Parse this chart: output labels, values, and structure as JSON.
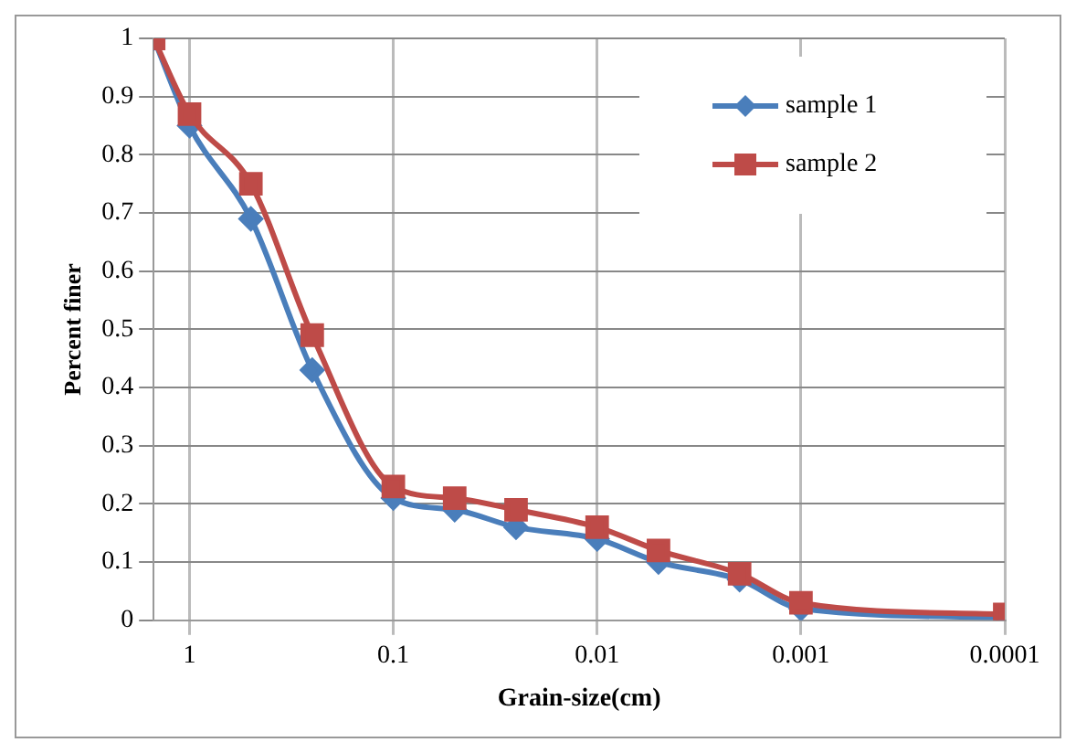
{
  "chart_data": {
    "type": "line",
    "xlabel": "Grain-size(cm)",
    "ylabel": "Percent finer",
    "log": "x",
    "xlim": [
      1.5,
      0.0001
    ],
    "xticks": [
      1,
      0.1,
      0.01,
      0.001,
      0.0001
    ],
    "ylim": [
      0,
      1
    ],
    "yticks": [
      0,
      0.1,
      0.2,
      0.3,
      0.4,
      0.5,
      0.6,
      0.7,
      0.8,
      0.9,
      1
    ],
    "grid": true,
    "legend": "top right",
    "series": [
      {
        "name": "sample 1",
        "color": "#4a7ebb",
        "marker": "diamond",
        "x": [
          1.5,
          1,
          0.5,
          0.25,
          0.1,
          0.05,
          0.025,
          0.01,
          0.005,
          0.002,
          0.001,
          0.0001
        ],
        "values": [
          1,
          0.85,
          0.69,
          0.43,
          0.21,
          0.19,
          0.16,
          0.14,
          0.1,
          0.07,
          0.02,
          0.005
        ]
      },
      {
        "name": "sample 2",
        "color": "#be4b48",
        "marker": "square",
        "x": [
          1.5,
          1,
          0.5,
          0.25,
          0.1,
          0.05,
          0.025,
          0.01,
          0.005,
          0.002,
          0.001,
          0.0001
        ],
        "values": [
          1,
          0.87,
          0.75,
          0.49,
          0.23,
          0.21,
          0.19,
          0.16,
          0.12,
          0.08,
          0.03,
          0.01
        ]
      }
    ]
  }
}
